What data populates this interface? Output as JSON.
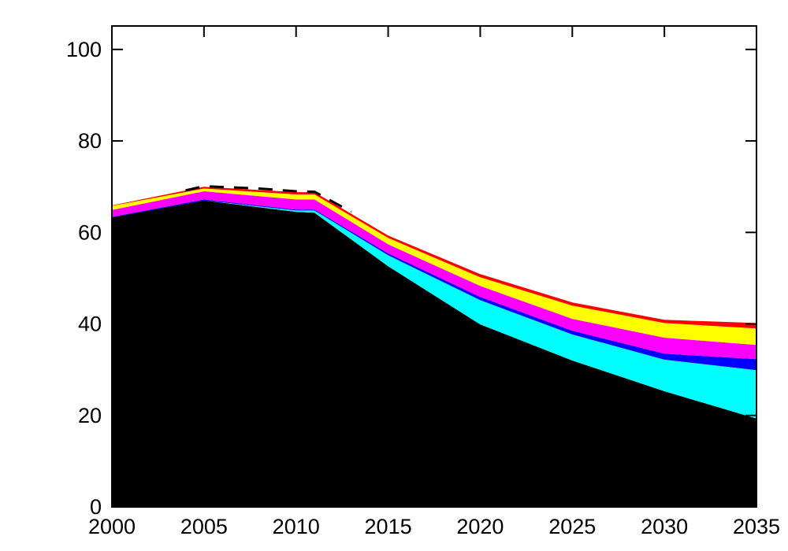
{
  "chart_data": {
    "type": "area",
    "stacked": true,
    "title": "",
    "xlabel": "",
    "ylabel": "",
    "grid": false,
    "legend": false,
    "xlim": [
      2000,
      2035
    ],
    "ylim": [
      0,
      105
    ],
    "xticks": [
      2000,
      2005,
      2010,
      2015,
      2020,
      2025,
      2030,
      2035
    ],
    "xticklabels": [
      "2000",
      "2005",
      "2010",
      "2015",
      "2020",
      "2025",
      "2030",
      "2035"
    ],
    "yticks": [
      0,
      20,
      40,
      60,
      80,
      100
    ],
    "yticklabels": [
      "0",
      "20",
      "40",
      "60",
      "80",
      "100"
    ],
    "x": [
      2000,
      2005,
      2010,
      2011,
      2015,
      2020,
      2025,
      2030,
      2035
    ],
    "series": [
      {
        "name": "black-layer",
        "color": "#000000",
        "values": [
          63.3,
          67.0,
          64.5,
          64.3,
          52.6,
          39.9,
          32.0,
          25.3,
          19.3
        ]
      },
      {
        "name": "cyan-layer",
        "color": "#00ffff",
        "values": [
          0.0,
          0.0,
          0.3,
          0.5,
          2.4,
          5.3,
          5.7,
          6.9,
          10.6
        ]
      },
      {
        "name": "blue-layer",
        "color": "#0000ff",
        "values": [
          0.1,
          0.2,
          0.2,
          0.2,
          0.4,
          0.7,
          0.8,
          1.3,
          2.4
        ]
      },
      {
        "name": "magenta-layer",
        "color": "#ff00ff",
        "values": [
          1.5,
          1.8,
          2.2,
          2.2,
          2.0,
          2.4,
          2.6,
          3.5,
          3.1
        ]
      },
      {
        "name": "yellow-layer",
        "color": "#ffff00",
        "values": [
          0.9,
          0.6,
          1.1,
          1.1,
          1.4,
          1.9,
          2.9,
          3.2,
          3.6
        ]
      },
      {
        "name": "red-layer",
        "color": "#ff0000",
        "values": [
          0.1,
          0.4,
          0.5,
          0.5,
          0.5,
          0.7,
          0.7,
          0.7,
          1.2
        ]
      }
    ],
    "overlay_line": {
      "name": "dashed-black-top-line",
      "color": "#000000",
      "dash": [
        18,
        13
      ],
      "x": [
        2004,
        2005,
        2008,
        2010,
        2011,
        2013
      ],
      "y": [
        69.2,
        70.1,
        69.6,
        69.0,
        68.9,
        64.5
      ]
    },
    "axis_color": "#000000",
    "background_color": "#ffffff"
  }
}
